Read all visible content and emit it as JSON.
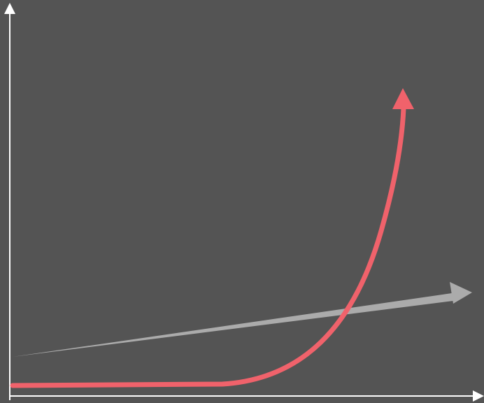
{
  "diagram": {
    "kind": "growth-comparison",
    "curves": [
      {
        "name": "",
        "shape": "exponential",
        "color": "#f0626b"
      },
      {
        "name": "",
        "shape": "linear",
        "color": "#ababab"
      }
    ],
    "axes": {
      "color": "#ffffff",
      "x_label": "",
      "y_label": ""
    }
  },
  "colors": {
    "background": "#545454",
    "axis": "#ffffff",
    "exponential": "#f0626b",
    "linear": "#ababab"
  }
}
